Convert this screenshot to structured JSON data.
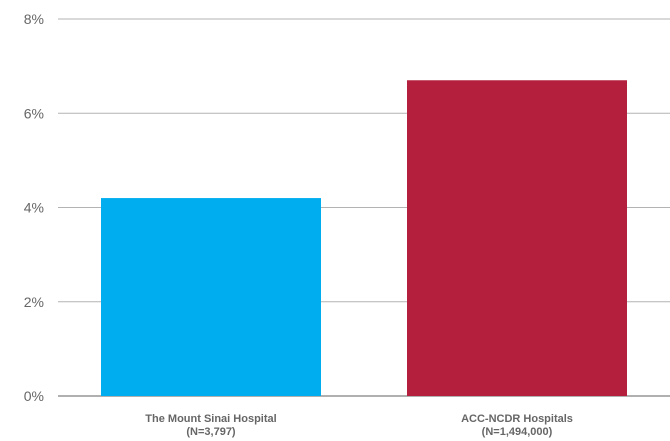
{
  "chart_data": {
    "type": "bar",
    "title": "",
    "xlabel": "",
    "ylabel": "",
    "categories": [
      {
        "name": "The Mount Sinai Hospital",
        "subtitle": "(N=3,797)"
      },
      {
        "name": "ACC-NCDR Hospitals",
        "subtitle": "(N=1,494,000)"
      }
    ],
    "values": [
      4.2,
      6.7
    ],
    "colors": [
      "#00adef",
      "#b31f3c"
    ],
    "ylim": [
      0,
      8
    ],
    "yticks": [
      {
        "value": 0,
        "label": "0%"
      },
      {
        "value": 2,
        "label": "2%"
      },
      {
        "value": 4,
        "label": "4%"
      },
      {
        "value": 6,
        "label": "6%"
      },
      {
        "value": 8,
        "label": "8%"
      }
    ],
    "grid": true,
    "legend": "none"
  }
}
